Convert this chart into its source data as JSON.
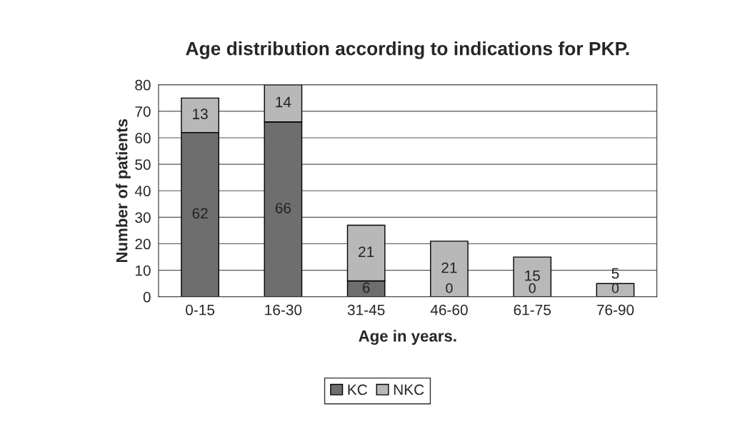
{
  "chart_data": {
    "type": "bar",
    "title": "Age distribution according to indications for PKP.",
    "xlabel": "Age in years.",
    "ylabel": "Number of patients",
    "categories": [
      "0-15",
      "16-30",
      "31-45",
      "46-60",
      "61-75",
      "76-90"
    ],
    "series": [
      {
        "name": "KC",
        "color": "#6e6e6e",
        "values": [
          62,
          66,
          6,
          0,
          0,
          0
        ]
      },
      {
        "name": "NKC",
        "color": "#b8b8b8",
        "values": [
          13,
          14,
          21,
          21,
          15,
          5
        ]
      }
    ],
    "stacked": true,
    "data_labels": true,
    "ylim": [
      0,
      80
    ],
    "yticks": [
      0,
      10,
      20,
      30,
      40,
      50,
      60,
      70,
      80
    ],
    "grid": "y",
    "legend": "bottom"
  }
}
